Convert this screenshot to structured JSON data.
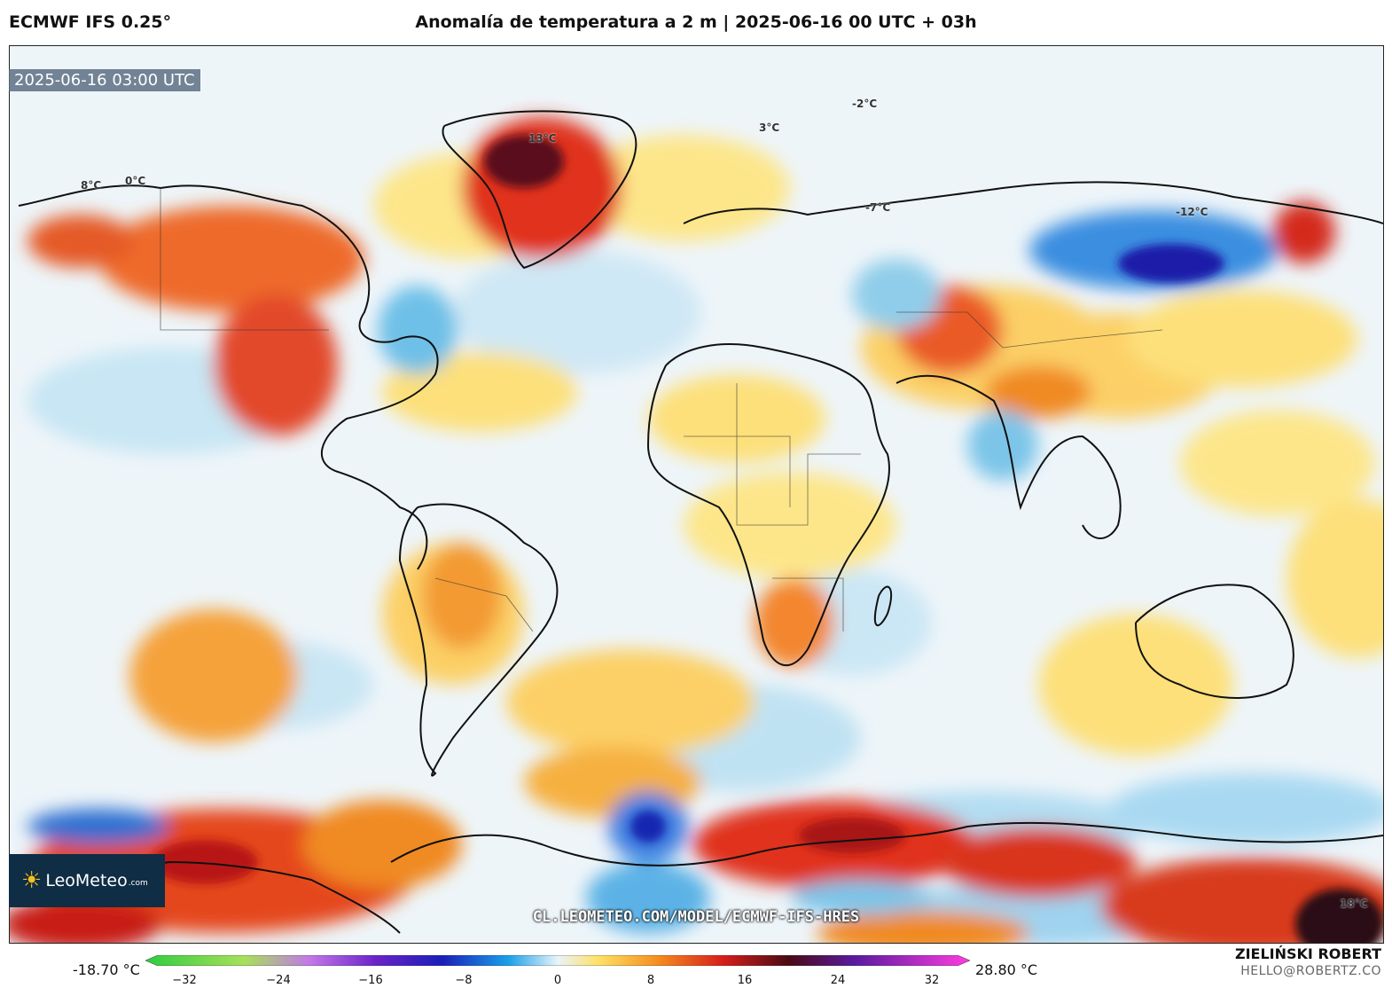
{
  "header": {
    "model": "ECMWF IFS 0.25°",
    "title": "Anomalía de temperatura a 2 m | 2025-06-16 00 UTC + 03h"
  },
  "map": {
    "timestamp": "2025-06-16 03:00 UTC",
    "watermark": "CL.LEOMETEO.COM/MODEL/ECMWF-IFS-HRES",
    "logo_text": "LeoMeteo",
    "logo_domain": ".com",
    "contour_labels": [
      "0°C",
      "-2°C",
      "3°C",
      "8°C",
      "13°C",
      "-7°C",
      "-12°C",
      "18°C"
    ]
  },
  "colorbar": {
    "min_label": "-18.70 °C",
    "max_label": "28.80 °C",
    "ticks": [
      "−32",
      "−24",
      "−16",
      "−8",
      "0",
      "8",
      "16",
      "24",
      "32"
    ],
    "unit": "°C"
  },
  "credits": {
    "author": "ZIELIŃSKI ROBERT",
    "email": "HELLO@ROBERTZ.CO"
  },
  "colors": {
    "warm_strong": "#c0141a",
    "warm": "#f08a24",
    "warm_light": "#fde07a",
    "neutral": "#f2f7fa",
    "cool_light": "#b9e1f2",
    "cool": "#3aa6e0",
    "cool_strong": "#1a2fb8"
  }
}
